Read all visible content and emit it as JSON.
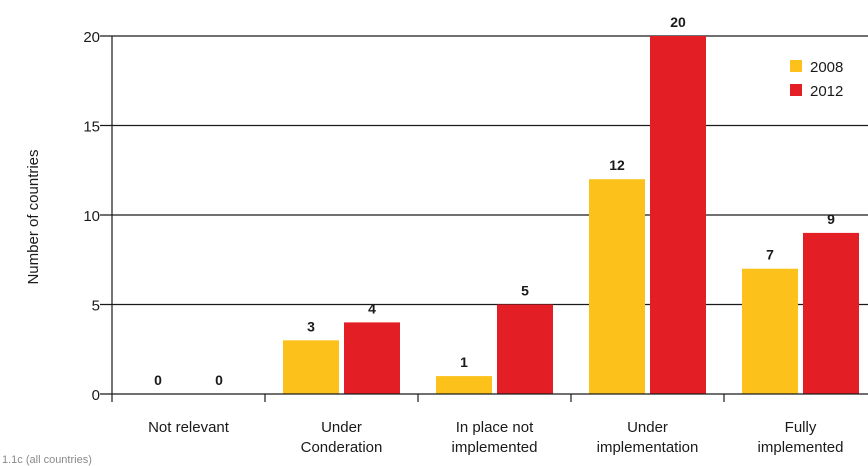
{
  "chart_data": {
    "type": "bar",
    "title": "",
    "xlabel": "",
    "ylabel": "Number of countries",
    "ylim": [
      0,
      20
    ],
    "yticks": [
      0,
      5,
      10,
      15,
      20
    ],
    "grid": true,
    "legend_position": "top-right",
    "categories": [
      [
        "Not relevant"
      ],
      [
        "Under",
        "Conderation"
      ],
      [
        "In place not",
        "implemented"
      ],
      [
        "Under",
        "implementation"
      ],
      [
        "Fully",
        "implemented"
      ]
    ],
    "series": [
      {
        "name": "2008",
        "color": "#FCC21B",
        "values": [
          0,
          3,
          1,
          12,
          7
        ]
      },
      {
        "name": "2012",
        "color": "#E31E24",
        "values": [
          0,
          4,
          5,
          20,
          9
        ]
      }
    ]
  },
  "footnote": "1.1c (all countries)"
}
